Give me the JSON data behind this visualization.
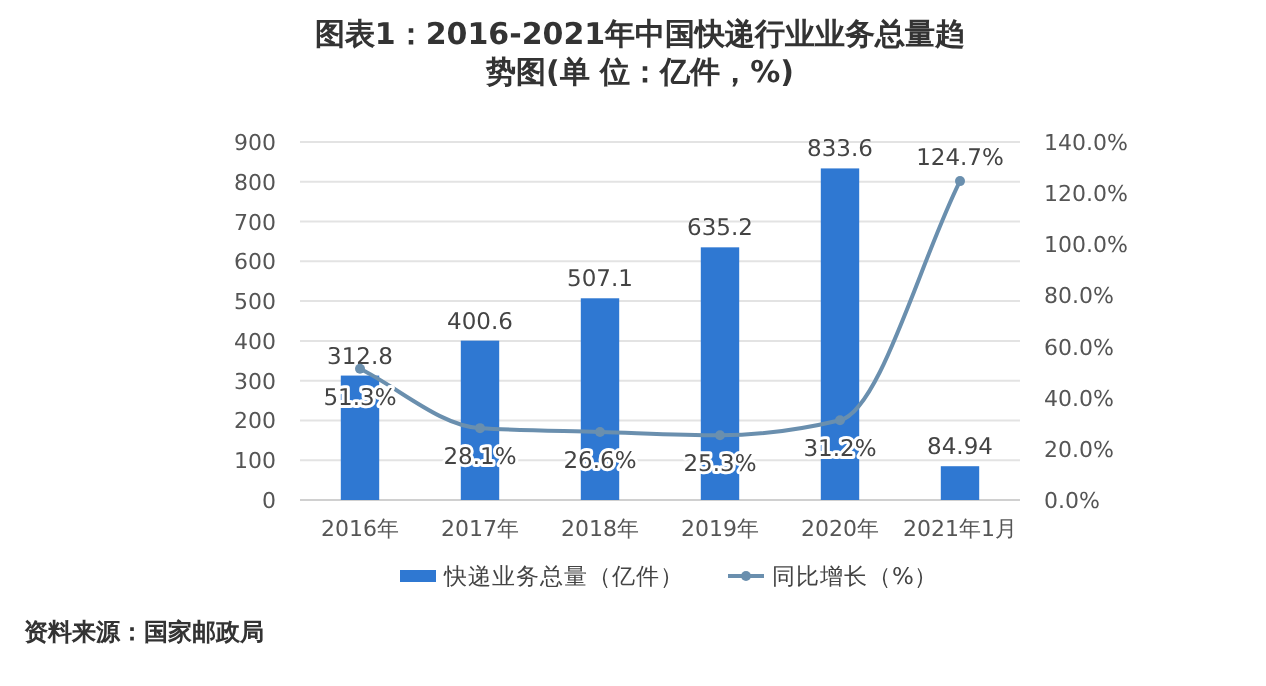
{
  "chart_data": {
    "type": "bar",
    "title": "图表1：2016-2021年中国快递行业业务总量趋势图(单 位：亿件，%)",
    "categories": [
      "2016年",
      "2017年",
      "2018年",
      "2019年",
      "2020年",
      "2021年1月"
    ],
    "series": [
      {
        "name": "快递业务总量（亿件）",
        "color": "#2f78d2",
        "values": [
          312.8,
          400.6,
          507.1,
          635.2,
          833.6,
          84.94
        ],
        "value_labels": [
          "312.8",
          "400.6",
          "507.1",
          "635.2",
          "833.6",
          "84.94"
        ]
      },
      {
        "name": "同比增长（%）",
        "type": "line",
        "axis": "y2",
        "color": "#6a8fae",
        "marker": "circle",
        "values": [
          51.3,
          28.1,
          26.6,
          25.3,
          31.2,
          124.7
        ],
        "value_labels": [
          "51.3%",
          "28.1%",
          "26.6%",
          "25.3%",
          "31.2%",
          "124.7%"
        ]
      }
    ],
    "ylim": [
      0,
      900
    ],
    "yticks": [
      0,
      100,
      200,
      300,
      400,
      500,
      600,
      700,
      800,
      900
    ],
    "y2lim": [
      0,
      140
    ],
    "y2ticks": [
      {
        "value": 0,
        "label": "0.0%"
      },
      {
        "value": 20,
        "label": "20.0%"
      },
      {
        "value": 40,
        "label": "40.0%"
      },
      {
        "value": 60,
        "label": "60.0%"
      },
      {
        "value": 80,
        "label": "80.0%"
      },
      {
        "value": 100,
        "label": "100.0%"
      },
      {
        "value": 120,
        "label": "120.0%"
      },
      {
        "value": 140,
        "label": "140.0%"
      }
    ],
    "grid": "y",
    "legend": "bottom",
    "annotations": [
      "资料来源：国家邮政局"
    ]
  }
}
